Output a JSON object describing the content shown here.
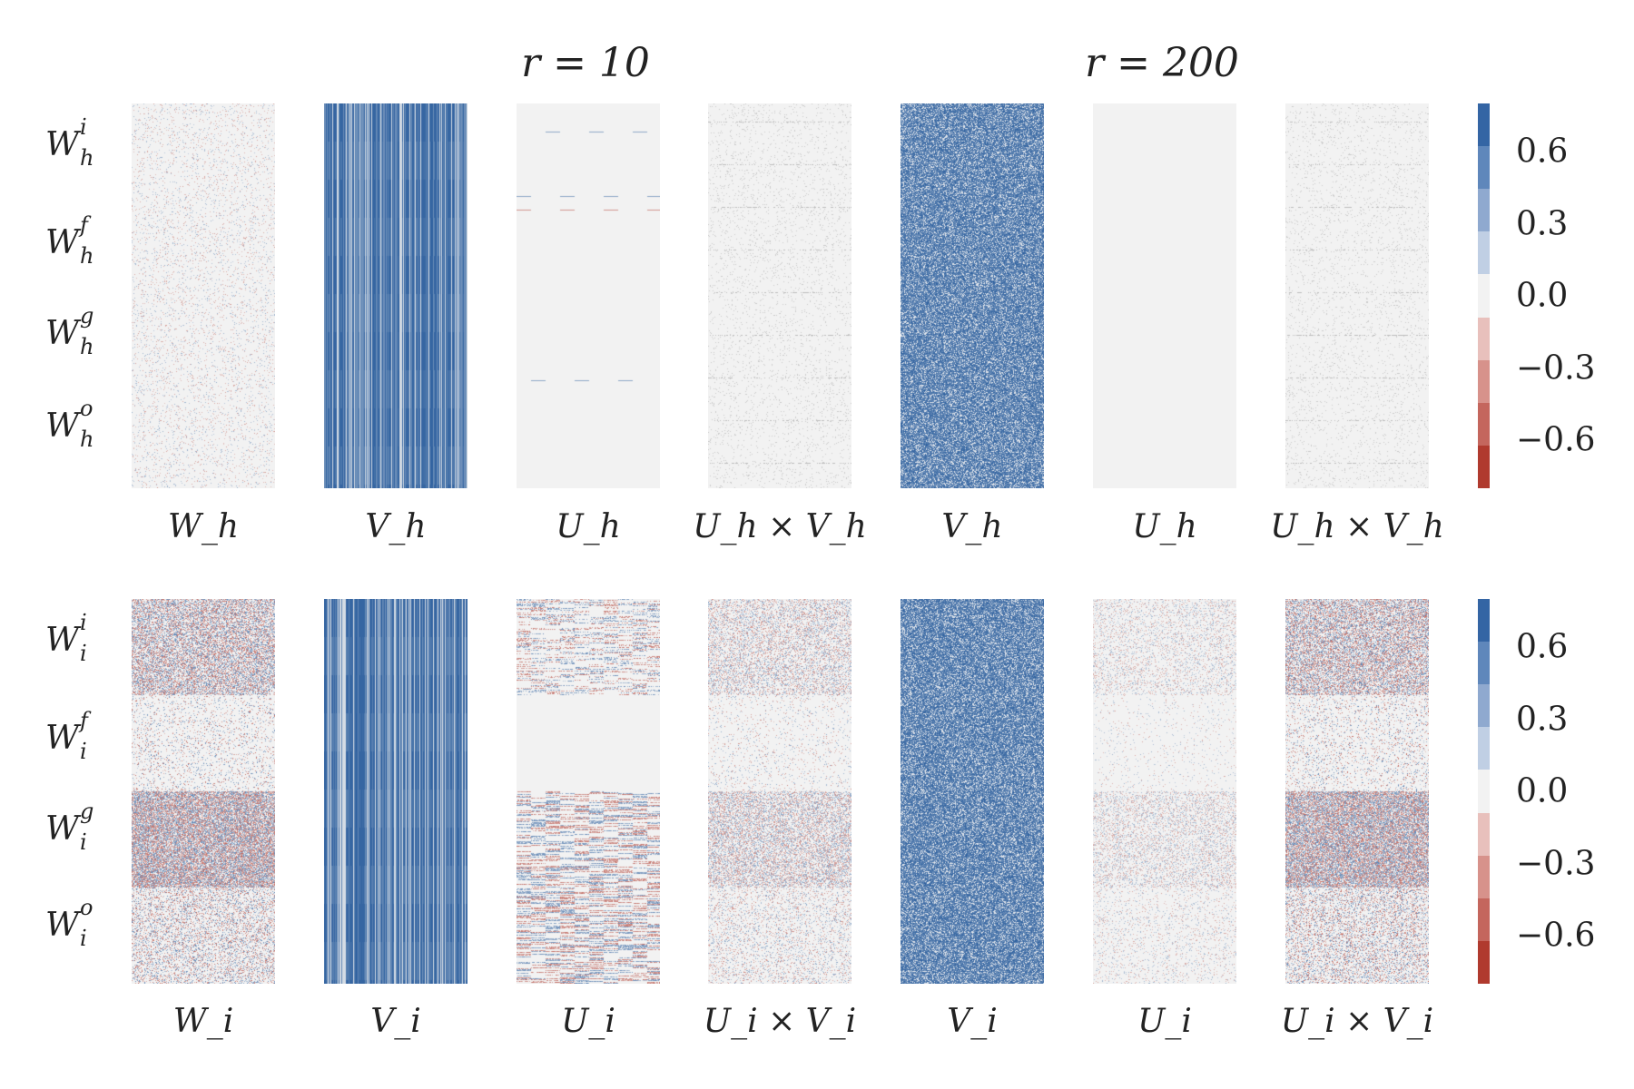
{
  "chart_data": {
    "type": "heatmap",
    "group_titles": [
      "r = 10",
      "r = 200"
    ],
    "rows": [
      {
        "id": "hidden",
        "row_labels": [
          {
            "base": "W",
            "sup": "i",
            "sub": "h"
          },
          {
            "base": "W",
            "sup": "f",
            "sub": "h"
          },
          {
            "base": "W",
            "sup": "g",
            "sub": "h"
          },
          {
            "base": "W",
            "sup": "o",
            "sub": "h"
          }
        ],
        "panels": [
          {
            "label": "W_h",
            "label_base": "W",
            "label_sub": "h",
            "pattern": "sparse_noise",
            "intensity": 0.25
          },
          {
            "label": "V_h",
            "label_base": "V",
            "label_sub": "h",
            "pattern": "vertical_stripes_blue",
            "intensity": 0.9
          },
          {
            "label": "U_h",
            "label_base": "U",
            "label_sub": "h",
            "pattern": "sparse_horizontal",
            "intensity": 0.35
          },
          {
            "label": "U_h × V_h",
            "label_base": "U_h",
            "label_sub": "",
            "pattern": "faint_noise",
            "intensity": 0.12
          },
          {
            "label": "V_h",
            "label_base": "V",
            "label_sub": "h",
            "pattern": "dense_blue_noise",
            "intensity": 0.9
          },
          {
            "label": "U_h",
            "label_base": "U",
            "label_sub": "h",
            "pattern": "empty",
            "intensity": 0.0
          },
          {
            "label": "U_h × V_h",
            "label_base": "U_h",
            "label_sub": "",
            "pattern": "faint_noise",
            "intensity": 0.12
          }
        ],
        "x_labels": [
          "W_h",
          "V_h",
          "U_h",
          "U_h × V_h",
          "V_h",
          "U_h",
          "U_h × V_h"
        ]
      },
      {
        "id": "input",
        "row_labels": [
          {
            "base": "W",
            "sup": "i",
            "sub": "i"
          },
          {
            "base": "W",
            "sup": "f",
            "sub": "i"
          },
          {
            "base": "W",
            "sup": "g",
            "sub": "i"
          },
          {
            "base": "W",
            "sup": "o",
            "sub": "i"
          }
        ],
        "panels": [
          {
            "label": "W_i",
            "pattern": "gate_noise_strong",
            "intensity": 0.6
          },
          {
            "label": "V_i",
            "pattern": "vertical_stripes_blue",
            "intensity": 0.95
          },
          {
            "label": "U_i",
            "pattern": "gate_horizontal",
            "intensity": 0.5
          },
          {
            "label": "U_i × V_i",
            "pattern": "gate_noise_medium",
            "intensity": 0.35
          },
          {
            "label": "V_i",
            "pattern": "dense_blue_noise",
            "intensity": 0.9
          },
          {
            "label": "U_i",
            "pattern": "gate_noise_light",
            "intensity": 0.25
          },
          {
            "label": "U_i × V_i",
            "pattern": "gate_noise_strong",
            "intensity": 0.55
          }
        ],
        "x_labels": [
          "W_i",
          "V_i",
          "U_i",
          "U_i × V_i",
          "V_i",
          "U_i",
          "U_i × V_i"
        ]
      }
    ],
    "colorbar": {
      "ticks": [
        "0.6",
        "0.3",
        "0.0",
        "−0.3",
        "−0.6"
      ],
      "tick_values": [
        0.6,
        0.3,
        0.0,
        -0.3,
        -0.6
      ],
      "range": [
        -0.8,
        0.8
      ],
      "colors": [
        "#3465a4",
        "#5f87bb",
        "#8fa9cf",
        "#c0cfe4",
        "#f2f2f2",
        "#e8c0bc",
        "#d7928b",
        "#c4665d",
        "#b03a2e"
      ]
    },
    "colors": {
      "positive": "#2c5f9e",
      "negative": "#b03a2e",
      "neutral": "#f2f2f2"
    }
  }
}
